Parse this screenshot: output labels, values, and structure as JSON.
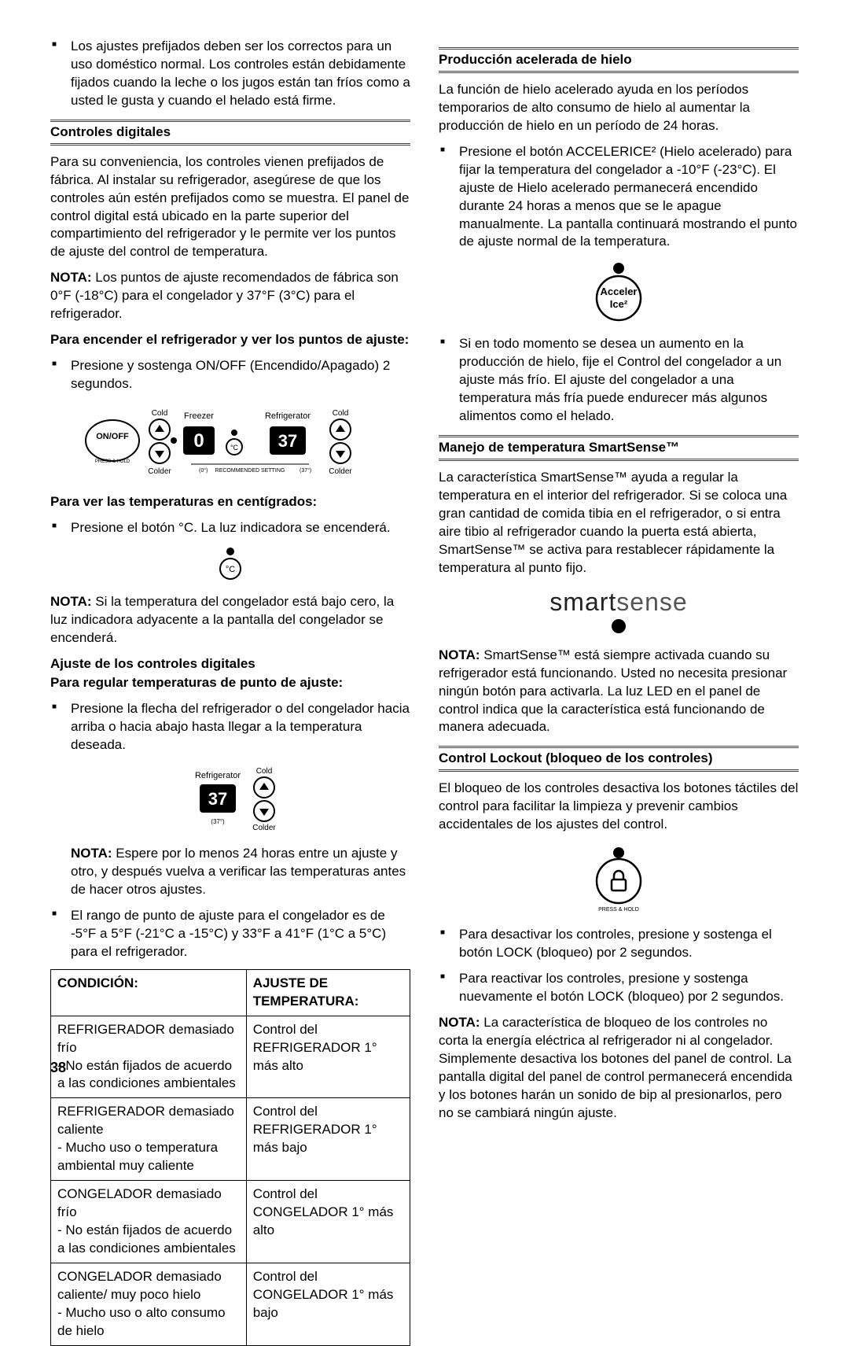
{
  "pageNumber": "38",
  "left": {
    "intro_bullet": "Los ajustes prefijados deben ser los correctos para un uso doméstico normal. Los controles están debidamente fijados cuando la leche o los jugos están tan fríos como a usted le gusta y cuando el helado está firme.",
    "sec1_title": "Controles digitales",
    "sec1_p1": "Para su conveniencia, los controles vienen prefijados de fábrica. Al instalar su refrigerador, asegúrese de que los controles aún estén prefijados como se muestra. El panel de control digital está ubicado en la parte superior del compartimiento del refrigerador y le permite ver los puntos de ajuste del control de temperatura.",
    "sec1_nota": "NOTA: Los puntos de ajuste recomendados de fábrica son 0°F (-18°C) para el congelador y 37°F (3°C) para el refrigerador.",
    "sec1_sub1": "Para encender el refrigerador y ver los puntos de ajuste:",
    "sec1_bullet1": "Presione y sostenga ON/OFF (Encendido/Apagado) 2 segundos.",
    "panel": {
      "onoff": "ON/OFF",
      "press": "PRESS & HOLD",
      "freezer": "Freezer",
      "refrigerator": "Refrigerator",
      "cold": "Cold",
      "colder": "Colder",
      "vals": [
        "0",
        "37"
      ],
      "c": "°C",
      "recommended": "RECOMMENDED SETTING",
      "ticks": [
        "(0°)",
        "(37°)"
      ]
    },
    "sec1_sub2": "Para ver las temperaturas en centígrados:",
    "sec1_bullet2": "Presione el botón °C. La luz indicadora se encenderá.",
    "sec1_nota2": "NOTA: Si la temperatura del congelador está bajo cero, la luz indicadora adyacente a la pantalla del congelador se encenderá.",
    "sec2_title": "Ajuste de los controles digitales",
    "sec2_sub1": "Para regular temperaturas de punto de ajuste:",
    "sec2_bullet1": "Presione la flecha del refrigerador o del congelador hacia arriba o hacia abajo hasta llegar a la temperatura deseada.",
    "sec2_nota": "NOTA: Espere por lo menos 24 horas entre un ajuste y otro, y después vuelva a verificar las temperaturas antes de hacer otros ajustes.",
    "sec2_bullet2": "El rango de punto de ajuste para el congelador es de -5°F a 5°F (-21°C a -15°C) y 33°F a 41°F (1°C a 5°C) para el refrigerador.",
    "table": {
      "head": [
        "CONDICIÓN:",
        "AJUSTE DE TEMPERATURA:"
      ],
      "rows": [
        [
          "REFRIGERADOR demasiado frío\n- No están fijados de acuerdo a las condiciones ambientales",
          "Control del REFRIGERADOR 1° más alto"
        ],
        [
          "REFRIGERADOR demasiado caliente\n- Mucho uso o temperatura ambiental muy caliente",
          "Control del REFRIGERADOR 1° más bajo"
        ],
        [
          "CONGELADOR demasiado frío\n- No están fijados de acuerdo a las condiciones ambientales",
          "Control del CONGELADOR 1° más alto"
        ],
        [
          "CONGELADOR demasiado caliente/ muy poco hielo\n- Mucho uso o alto consumo de hielo",
          "Control del CONGELADOR 1° más bajo"
        ]
      ]
    }
  },
  "right": {
    "sec1_title": "Producción acelerada de hielo",
    "sec1_p1": "La función de hielo acelerado ayuda en los períodos temporarios de alto consumo de hielo al aumentar la producción de hielo en un período de 24 horas.",
    "sec1_bullet1": "Presione el botón ACCELERICE² (Hielo acelerado) para fijar la temperatura del congelador a -10°F (-23°C). El ajuste de Hielo acelerado permanecerá encendido durante 24 horas a menos que se le apague manualmente. La pantalla continuará mostrando el punto de ajuste normal de la temperatura.",
    "accel_label1": "Acceler",
    "accel_label2": "Ice²",
    "sec1_bullet2": "Si en todo momento se desea un aumento en la producción de hielo, fije el Control del congelador a un ajuste más frío. El ajuste del congelador a una temperatura más fría puede endurecer más algunos alimentos como el helado.",
    "sec2_title": "Manejo de temperatura SmartSense™",
    "sec2_p1": "La característica SmartSense™ ayuda a regular la temperatura en el interior del refrigerador. Si se coloca una gran cantidad de comida tibia en el refrigerador, o si entra aire tibio al refrigerador cuando la puerta está abierta, SmartSense™ se activa para restablecer rápidamente la temperatura al punto fijo.",
    "smart_logo1": "smart",
    "smart_logo2": "sense",
    "sec2_nota": "NOTA: SmartSense™ está siempre activada cuando su refrigerador está funcionando. Usted no necesita presionar ningún botón para activarla. La luz LED en el panel de control indica que la característica está funcionando de manera adecuada.",
    "sec3_title": "Control Lockout (bloqueo de los controles)",
    "sec3_p1": "El bloqueo de los controles desactiva los botones táctiles del control para facilitar la limpieza y prevenir cambios accidentales de los ajustes del control.",
    "lock_press": "PRESS & HOLD",
    "sec3_bullet1": "Para desactivar los controles, presione y sostenga el botón LOCK (bloqueo) por 2 segundos.",
    "sec3_bullet2": "Para reactivar los controles, presione y sostenga nuevamente el botón LOCK (bloqueo) por 2 segundos.",
    "sec3_nota": "NOTA: La característica de bloqueo de los controles no corta la energía eléctrica al refrigerador ni al congelador. Simplemente desactiva los botones del panel de control. La pantalla digital del panel de control permanecerá encendida y los botones harán un sonido de bip al presionarlos, pero no se cambiará ningún ajuste."
  }
}
